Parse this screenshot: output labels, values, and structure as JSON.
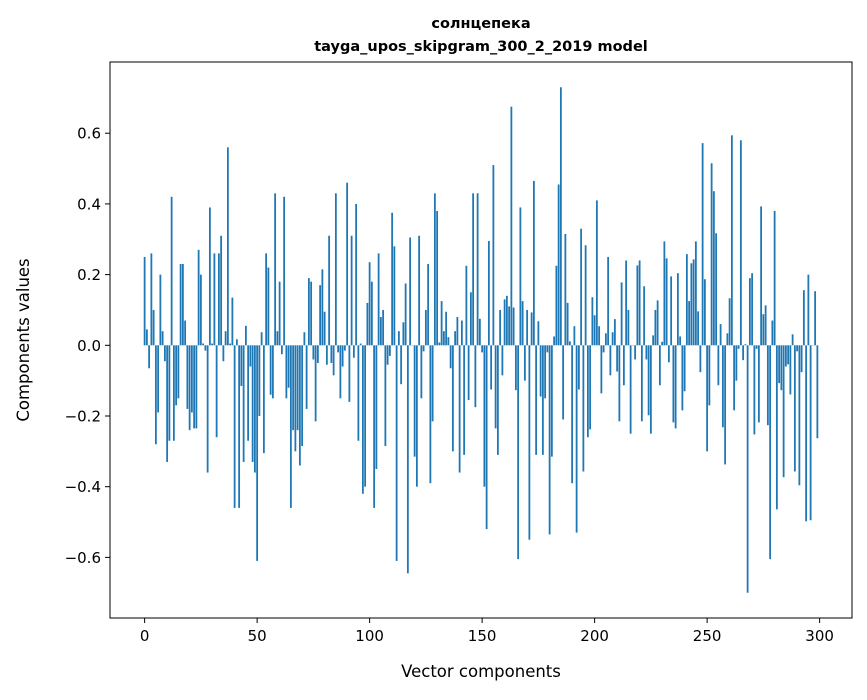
{
  "chart_data": {
    "type": "bar",
    "title": [
      "солнцепека",
      "tayga_upos_skipgram_300_2_2019 model"
    ],
    "xlabel": "Vector components",
    "ylabel": "Components values",
    "xlim": [
      -15.39,
      314.39
    ],
    "ylim": [
      -0.7715,
      0.8015
    ],
    "xticks": [
      0,
      50,
      100,
      150,
      200,
      250,
      300
    ],
    "xtick_labels": [
      "0",
      "50",
      "100",
      "150",
      "200",
      "250",
      "300"
    ],
    "yticks": [
      -0.6,
      -0.4,
      -0.2,
      0.0,
      0.2,
      0.4,
      0.6
    ],
    "ytick_labels": [
      "−0.6",
      "−0.4",
      "−0.2",
      "0.0",
      "0.2",
      "0.4",
      "0.6"
    ],
    "grid": false,
    "bar_color": "#1f77b4",
    "bar_width": 0.8,
    "values": [
      0.25,
      0.045,
      -0.065,
      0.26,
      0.1,
      -0.28,
      -0.19,
      0.2,
      0.04,
      -0.045,
      -0.33,
      -0.27,
      0.42,
      -0.27,
      -0.17,
      -0.15,
      0.23,
      0.23,
      0.07,
      -0.18,
      -0.24,
      -0.19,
      -0.235,
      -0.235,
      0.27,
      0.2,
      0.005,
      -0.015,
      -0.36,
      0.39,
      0.005,
      0.26,
      -0.26,
      0.26,
      0.31,
      -0.045,
      0.04,
      0.56,
      0.005,
      0.135,
      -0.46,
      0.017,
      -0.46,
      -0.115,
      -0.33,
      0.055,
      -0.27,
      -0.06,
      -0.33,
      -0.36,
      -0.61,
      -0.2,
      0.037,
      -0.305,
      0.26,
      0.22,
      -0.14,
      -0.15,
      0.43,
      0.04,
      0.18,
      -0.025,
      0.42,
      -0.15,
      -0.12,
      -0.46,
      -0.24,
      -0.3,
      -0.24,
      -0.34,
      -0.285,
      0.037,
      -0.18,
      0.19,
      0.18,
      -0.04,
      -0.215,
      -0.05,
      0.17,
      0.215,
      0.095,
      -0.055,
      0.31,
      -0.05,
      -0.085,
      0.43,
      -0.02,
      -0.15,
      -0.06,
      -0.015,
      0.46,
      -0.16,
      0.31,
      -0.035,
      0.4,
      -0.27,
      0.005,
      -0.42,
      -0.4,
      0.12,
      0.235,
      0.18,
      -0.46,
      -0.35,
      0.26,
      0.08,
      0.1,
      -0.285,
      -0.055,
      -0.03,
      0.375,
      0.28,
      -0.61,
      0.04,
      -0.11,
      0.065,
      0.175,
      -0.645,
      0.305,
      0.0,
      -0.315,
      -0.4,
      0.31,
      -0.15,
      -0.017,
      0.1,
      0.23,
      -0.39,
      -0.215,
      0.43,
      0.38,
      0.008,
      0.125,
      0.04,
      0.095,
      0.023,
      -0.065,
      -0.3,
      0.04,
      0.08,
      -0.36,
      0.07,
      -0.31,
      0.225,
      -0.155,
      0.15,
      0.43,
      -0.175,
      0.43,
      0.075,
      -0.02,
      -0.4,
      -0.52,
      0.295,
      -0.125,
      0.51,
      -0.235,
      -0.31,
      0.1,
      -0.085,
      0.13,
      0.14,
      0.11,
      0.675,
      0.107,
      -0.127,
      -0.605,
      0.39,
      0.125,
      -0.1,
      0.1,
      -0.55,
      0.093,
      0.465,
      -0.31,
      0.068,
      -0.145,
      -0.31,
      -0.15,
      -0.02,
      -0.535,
      -0.315,
      0.025,
      0.225,
      0.455,
      0.73,
      -0.21,
      0.315,
      0.12,
      0.011,
      -0.39,
      0.054,
      -0.53,
      -0.125,
      0.33,
      -0.357,
      0.283,
      -0.26,
      -0.238,
      0.136,
      0.085,
      0.41,
      0.054,
      -0.136,
      -0.02,
      0.034,
      0.25,
      -0.085,
      0.037,
      0.074,
      -0.074,
      -0.215,
      0.178,
      -0.113,
      0.24,
      0.1,
      -0.25,
      0.0,
      -0.04,
      0.226,
      0.24,
      -0.215,
      0.167,
      -0.04,
      -0.198,
      -0.25,
      0.028,
      0.1,
      0.127,
      -0.113,
      0.01,
      0.294,
      0.246,
      -0.048,
      0.195,
      -0.218,
      -0.235,
      0.204,
      0.025,
      -0.184,
      -0.13,
      0.258,
      0.125,
      0.232,
      0.243,
      0.294,
      0.096,
      -0.076,
      0.572,
      0.187,
      -0.3,
      -0.17,
      0.515,
      0.436,
      0.317,
      -0.113,
      0.06,
      -0.232,
      -0.337,
      0.034,
      0.133,
      0.594,
      -0.184,
      -0.1,
      -0.01,
      0.58,
      -0.042,
      0.003,
      -0.7,
      0.19,
      0.204,
      -0.252,
      -0.01,
      -0.218,
      0.393,
      0.088,
      0.113,
      -0.226,
      -0.605,
      0.07,
      0.38,
      -0.464,
      -0.107,
      -0.127,
      -0.373,
      -0.06,
      -0.054,
      -0.139,
      0.031,
      -0.357,
      -0.017,
      -0.396,
      -0.076,
      0.156,
      -0.498,
      0.2,
      -0.495,
      0.0,
      0.153,
      -0.263
    ]
  }
}
